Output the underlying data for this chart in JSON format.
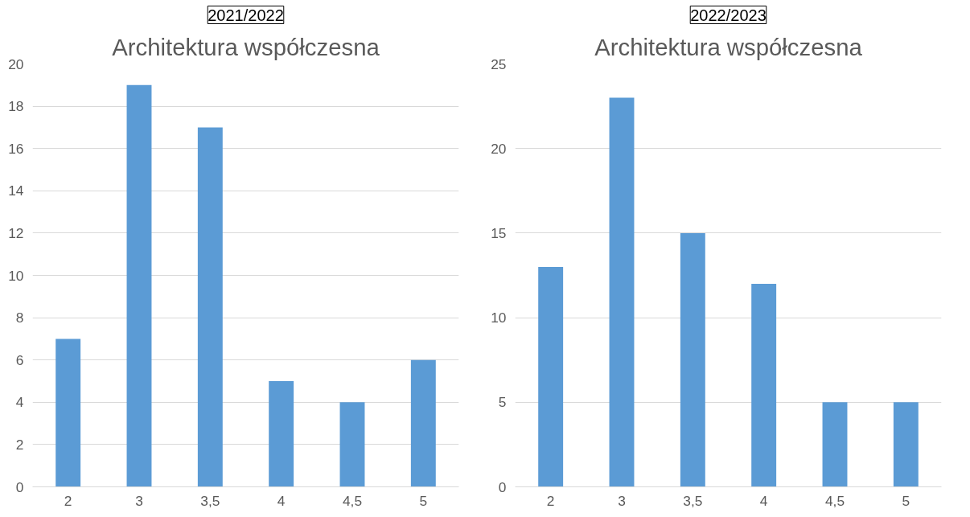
{
  "chart_data": [
    {
      "type": "bar",
      "subtitle": "2021/2022",
      "title": "Architektura współczesna",
      "categories": [
        "2",
        "3",
        "3,5",
        "4",
        "4,5",
        "5"
      ],
      "values": [
        7,
        19,
        17,
        5,
        4,
        6
      ],
      "color": "#5b9bd5",
      "ylim": [
        0,
        20
      ],
      "yticks": [
        0,
        2,
        4,
        6,
        8,
        10,
        12,
        14,
        16,
        18,
        20
      ],
      "grid": "y"
    },
    {
      "type": "bar",
      "subtitle": "2022/2023",
      "title": "Architektura współczesna",
      "categories": [
        "2",
        "3",
        "3,5",
        "4",
        "4,5",
        "5"
      ],
      "values": [
        13,
        23,
        15,
        12,
        5,
        5
      ],
      "color": "#5b9bd5",
      "ylim": [
        0,
        25
      ],
      "yticks": [
        0,
        5,
        10,
        15,
        20,
        25
      ],
      "grid": "y"
    }
  ]
}
